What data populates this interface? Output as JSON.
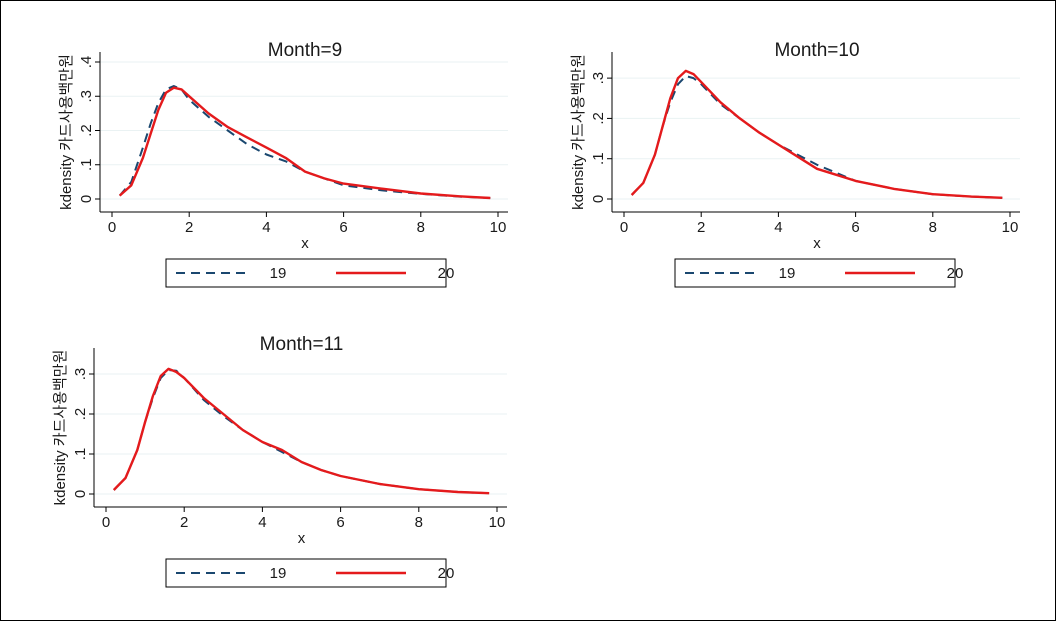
{
  "colors": {
    "series_19": "#1a476f",
    "series_20": "#e41a1c",
    "grid": "#eaf2f3",
    "axis": "#000000"
  },
  "chart_data": [
    {
      "type": "line",
      "title": "Month=9",
      "xlabel": "x",
      "ylabel": "kdensity 카드사용백만원",
      "xlim": [
        0,
        10
      ],
      "ylim": [
        0,
        0.4
      ],
      "x_ticks": [
        "0",
        "2",
        "4",
        "6",
        "8",
        "10"
      ],
      "y_ticks": [
        "0",
        ".1",
        ".2",
        ".3",
        ".4"
      ],
      "grid": true,
      "legend_position": "bottom",
      "series": [
        {
          "name": "19",
          "style": "dashed",
          "x": [
            0.2,
            0.5,
            0.8,
            1.0,
            1.2,
            1.4,
            1.6,
            1.8,
            2.0,
            2.5,
            3.0,
            3.5,
            4.0,
            4.5,
            5.0,
            5.5,
            6.0,
            7.0,
            8.0,
            9.0,
            9.8
          ],
          "y": [
            0.01,
            0.05,
            0.15,
            0.22,
            0.28,
            0.32,
            0.33,
            0.32,
            0.29,
            0.24,
            0.2,
            0.16,
            0.13,
            0.11,
            0.08,
            0.06,
            0.04,
            0.025,
            0.015,
            0.007,
            0.003
          ]
        },
        {
          "name": "20",
          "style": "solid",
          "x": [
            0.2,
            0.5,
            0.8,
            1.0,
            1.2,
            1.4,
            1.6,
            1.8,
            2.0,
            2.5,
            3.0,
            3.5,
            4.0,
            4.5,
            5.0,
            5.5,
            6.0,
            7.0,
            8.0,
            9.0,
            9.8
          ],
          "y": [
            0.01,
            0.04,
            0.12,
            0.19,
            0.26,
            0.31,
            0.325,
            0.32,
            0.3,
            0.25,
            0.21,
            0.18,
            0.15,
            0.12,
            0.08,
            0.06,
            0.045,
            0.03,
            0.016,
            0.008,
            0.003
          ]
        }
      ]
    },
    {
      "type": "line",
      "title": "Month=10",
      "xlabel": "x",
      "ylabel": "kdensity 카드사용백만원",
      "xlim": [
        0,
        10
      ],
      "ylim": [
        0,
        0.34
      ],
      "x_ticks": [
        "0",
        "2",
        "4",
        "6",
        "8",
        "10"
      ],
      "y_ticks": [
        "0",
        ".1",
        ".2",
        ".3"
      ],
      "grid": true,
      "legend_position": "bottom",
      "series": [
        {
          "name": "19",
          "style": "dashed",
          "x": [
            0.2,
            0.5,
            0.8,
            1.0,
            1.2,
            1.4,
            1.6,
            1.8,
            2.0,
            2.5,
            3.0,
            3.5,
            4.0,
            4.5,
            5.0,
            5.5,
            6.0,
            7.0,
            8.0,
            9.0,
            9.8
          ],
          "y": [
            0.01,
            0.04,
            0.11,
            0.18,
            0.24,
            0.285,
            0.305,
            0.3,
            0.285,
            0.235,
            0.2,
            0.165,
            0.135,
            0.11,
            0.085,
            0.065,
            0.045,
            0.025,
            0.012,
            0.006,
            0.003
          ]
        },
        {
          "name": "20",
          "style": "solid",
          "x": [
            0.2,
            0.5,
            0.8,
            1.0,
            1.2,
            1.4,
            1.6,
            1.8,
            2.0,
            2.5,
            3.0,
            3.5,
            4.0,
            4.5,
            5.0,
            5.5,
            6.0,
            7.0,
            8.0,
            9.0,
            9.8
          ],
          "y": [
            0.01,
            0.04,
            0.11,
            0.18,
            0.25,
            0.3,
            0.318,
            0.31,
            0.29,
            0.24,
            0.2,
            0.165,
            0.135,
            0.105,
            0.075,
            0.06,
            0.045,
            0.025,
            0.012,
            0.006,
            0.003
          ]
        }
      ]
    },
    {
      "type": "line",
      "title": "Month=11",
      "xlabel": "x",
      "ylabel": "kdensity 카드사용백만원",
      "xlim": [
        0,
        10
      ],
      "ylim": [
        0,
        0.34
      ],
      "x_ticks": [
        "0",
        "2",
        "4",
        "6",
        "8",
        "10"
      ],
      "y_ticks": [
        "0",
        ".1",
        ".2",
        ".3"
      ],
      "grid": true,
      "legend_position": "bottom",
      "series": [
        {
          "name": "19",
          "style": "dashed",
          "x": [
            0.2,
            0.5,
            0.8,
            1.0,
            1.2,
            1.4,
            1.6,
            1.8,
            2.0,
            2.5,
            3.0,
            3.5,
            4.0,
            4.5,
            5.0,
            5.5,
            6.0,
            7.0,
            8.0,
            9.0,
            9.8
          ],
          "y": [
            0.01,
            0.04,
            0.11,
            0.18,
            0.24,
            0.29,
            0.31,
            0.308,
            0.29,
            0.235,
            0.195,
            0.16,
            0.13,
            0.105,
            0.08,
            0.06,
            0.045,
            0.025,
            0.012,
            0.005,
            0.002
          ]
        },
        {
          "name": "20",
          "style": "solid",
          "x": [
            0.2,
            0.5,
            0.8,
            1.0,
            1.2,
            1.4,
            1.6,
            1.8,
            2.0,
            2.5,
            3.0,
            3.5,
            4.0,
            4.5,
            5.0,
            5.5,
            6.0,
            7.0,
            8.0,
            9.0,
            9.8
          ],
          "y": [
            0.01,
            0.04,
            0.11,
            0.18,
            0.245,
            0.295,
            0.313,
            0.305,
            0.29,
            0.24,
            0.2,
            0.16,
            0.13,
            0.11,
            0.08,
            0.06,
            0.045,
            0.025,
            0.012,
            0.005,
            0.002
          ]
        }
      ]
    }
  ]
}
